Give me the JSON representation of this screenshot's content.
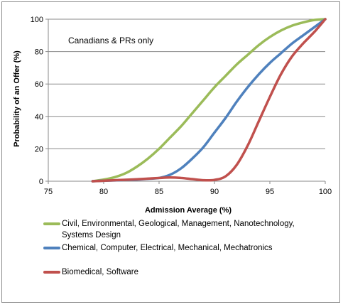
{
  "chart_data": {
    "type": "line",
    "annotation": "Canadians & PRs only",
    "xlabel": "Admission Average (%)",
    "ylabel": "Probability of an Offer (%)",
    "xlim": [
      75,
      100
    ],
    "ylim": [
      0,
      100
    ],
    "xticks": [
      "75",
      "80",
      "85",
      "90",
      "95",
      "100"
    ],
    "yticks": [
      "0",
      "20",
      "40",
      "60",
      "80",
      "100"
    ],
    "grid": "horizontal",
    "legend_position": "bottom",
    "series": [
      {
        "name": "Civil, Environmental, Geological, Management, Nanotechnology, Systems Design",
        "color": "#9bbb59",
        "x": [
          79,
          80,
          81,
          82,
          83,
          84,
          85,
          86,
          87,
          88,
          89,
          90,
          91,
          92,
          93,
          94,
          95,
          96,
          97,
          98,
          99,
          100
        ],
        "y": [
          0,
          1,
          2.5,
          5,
          9,
          14,
          20,
          27,
          34,
          42,
          50,
          58,
          65,
          72,
          78,
          84,
          89,
          93,
          96,
          98,
          99.5,
          100
        ]
      },
      {
        "name": "Chemical, Computer, Electrical, Mechanical, Mechatronics",
        "color": "#4f81bd",
        "x": [
          79,
          80,
          81,
          82,
          83,
          84,
          85,
          86,
          87,
          88,
          89,
          90,
          91,
          92,
          93,
          94,
          95,
          96,
          97,
          98,
          99,
          100
        ],
        "y": [
          0,
          0.3,
          0.5,
          0.8,
          1,
          1.5,
          2,
          4,
          8,
          14,
          21,
          30,
          39,
          49,
          58,
          66,
          73,
          79,
          85,
          90,
          95,
          100
        ]
      },
      {
        "name": "Biomedical, Software",
        "color": "#c0504d",
        "x": [
          79,
          80,
          81,
          82,
          83,
          84,
          85,
          86,
          87,
          88,
          89,
          90,
          91,
          92,
          93,
          94,
          95,
          96,
          97,
          98,
          99,
          100
        ],
        "y": [
          0,
          0.3,
          0.6,
          0.9,
          1.2,
          1.6,
          2,
          2.3,
          2,
          1.3,
          0.6,
          0.8,
          3,
          10,
          22,
          37,
          52,
          66,
          77,
          85,
          92,
          100
        ]
      }
    ]
  }
}
